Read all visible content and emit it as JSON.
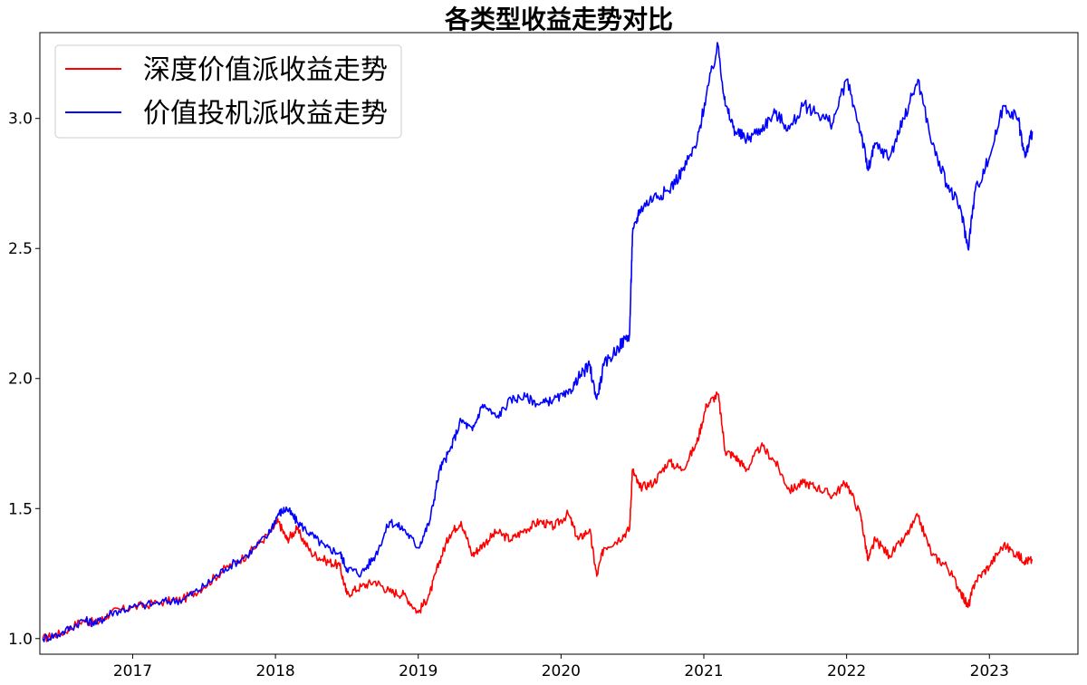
{
  "chart_data": {
    "type": "line",
    "title": "各类型收益走势对比",
    "xlabel": "",
    "ylabel": "",
    "xlim": [
      2016.35,
      2023.62
    ],
    "ylim": [
      0.94,
      3.33
    ],
    "grid": false,
    "legend_position": "top-left",
    "x_ticks": [
      2017,
      2018,
      2019,
      2020,
      2021,
      2022,
      2023
    ],
    "x_tick_labels": [
      "2017",
      "2018",
      "2019",
      "2020",
      "2021",
      "2022",
      "2023"
    ],
    "y_ticks": [
      1.0,
      1.5,
      2.0,
      2.5,
      3.0
    ],
    "y_tick_labels": [
      "1.0",
      "1.5",
      "2.0",
      "2.5",
      "3.0"
    ],
    "series": [
      {
        "name": "深度价值派收益走势",
        "color": "#ff0000",
        "x": [
          2016.37,
          2016.5,
          2016.65,
          2016.75,
          2016.85,
          2017.0,
          2017.2,
          2017.35,
          2017.5,
          2017.65,
          2017.8,
          2017.95,
          2018.02,
          2018.08,
          2018.15,
          2018.25,
          2018.35,
          2018.45,
          2018.5,
          2018.6,
          2018.7,
          2018.8,
          2018.9,
          2019.0,
          2019.08,
          2019.15,
          2019.22,
          2019.3,
          2019.38,
          2019.45,
          2019.55,
          2019.65,
          2019.75,
          2019.85,
          2019.95,
          2020.05,
          2020.12,
          2020.2,
          2020.25,
          2020.3,
          2020.4,
          2020.48,
          2020.5,
          2020.55,
          2020.65,
          2020.75,
          2020.85,
          2020.95,
          2021.02,
          2021.1,
          2021.15,
          2021.22,
          2021.3,
          2021.4,
          2021.5,
          2021.6,
          2021.7,
          2021.8,
          2021.9,
          2022.0,
          2022.1,
          2022.15,
          2022.2,
          2022.3,
          2022.4,
          2022.5,
          2022.6,
          2022.7,
          2022.8,
          2022.85,
          2022.9,
          2023.0,
          2023.1,
          2023.2,
          2023.25,
          2023.3
        ],
        "values": [
          1.0,
          1.02,
          1.07,
          1.06,
          1.1,
          1.12,
          1.14,
          1.15,
          1.2,
          1.27,
          1.32,
          1.4,
          1.45,
          1.38,
          1.42,
          1.33,
          1.3,
          1.28,
          1.17,
          1.2,
          1.22,
          1.18,
          1.17,
          1.1,
          1.17,
          1.3,
          1.4,
          1.45,
          1.32,
          1.36,
          1.41,
          1.38,
          1.42,
          1.45,
          1.43,
          1.48,
          1.38,
          1.42,
          1.24,
          1.35,
          1.38,
          1.42,
          1.65,
          1.58,
          1.6,
          1.68,
          1.65,
          1.75,
          1.9,
          1.94,
          1.72,
          1.7,
          1.65,
          1.74,
          1.68,
          1.57,
          1.6,
          1.58,
          1.55,
          1.6,
          1.47,
          1.3,
          1.38,
          1.32,
          1.38,
          1.47,
          1.32,
          1.28,
          1.18,
          1.12,
          1.22,
          1.28,
          1.36,
          1.32,
          1.3,
          1.3
        ]
      },
      {
        "name": "价值投机派收益走势",
        "color": "#0000ff",
        "x": [
          2016.37,
          2016.5,
          2016.65,
          2016.75,
          2016.85,
          2017.0,
          2017.2,
          2017.35,
          2017.5,
          2017.65,
          2017.8,
          2017.95,
          2018.02,
          2018.08,
          2018.15,
          2018.25,
          2018.35,
          2018.45,
          2018.5,
          2018.6,
          2018.7,
          2018.8,
          2018.9,
          2019.0,
          2019.08,
          2019.15,
          2019.22,
          2019.3,
          2019.38,
          2019.45,
          2019.55,
          2019.65,
          2019.75,
          2019.85,
          2019.95,
          2020.05,
          2020.12,
          2020.2,
          2020.25,
          2020.3,
          2020.4,
          2020.48,
          2020.5,
          2020.55,
          2020.65,
          2020.75,
          2020.85,
          2020.95,
          2021.02,
          2021.1,
          2021.15,
          2021.22,
          2021.3,
          2021.4,
          2021.5,
          2021.6,
          2021.7,
          2021.8,
          2021.9,
          2022.0,
          2022.1,
          2022.15,
          2022.2,
          2022.3,
          2022.4,
          2022.5,
          2022.6,
          2022.7,
          2022.8,
          2022.85,
          2022.9,
          2023.0,
          2023.1,
          2023.2,
          2023.25,
          2023.3
        ],
        "values": [
          1.0,
          1.02,
          1.07,
          1.06,
          1.1,
          1.12,
          1.14,
          1.15,
          1.2,
          1.27,
          1.32,
          1.4,
          1.48,
          1.5,
          1.45,
          1.4,
          1.35,
          1.33,
          1.27,
          1.25,
          1.32,
          1.45,
          1.42,
          1.35,
          1.45,
          1.65,
          1.72,
          1.84,
          1.8,
          1.9,
          1.85,
          1.92,
          1.93,
          1.9,
          1.92,
          1.94,
          2.0,
          2.05,
          1.92,
          2.05,
          2.12,
          2.17,
          2.55,
          2.65,
          2.7,
          2.72,
          2.8,
          2.9,
          3.1,
          3.28,
          3.05,
          2.95,
          2.92,
          2.96,
          3.02,
          2.96,
          3.05,
          3.02,
          2.98,
          3.15,
          2.95,
          2.8,
          2.9,
          2.85,
          3.0,
          3.15,
          2.9,
          2.75,
          2.65,
          2.5,
          2.72,
          2.85,
          3.05,
          3.0,
          2.85,
          2.95
        ]
      }
    ]
  }
}
